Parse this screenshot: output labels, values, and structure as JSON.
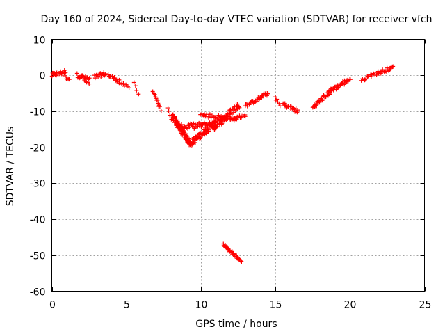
{
  "chart_data": {
    "type": "scatter",
    "title": "Day 160 of 2024, Sidereal Day-to-day VTEC variation (SDTVAR) for receiver vfch",
    "xlabel": "GPS time / hours",
    "ylabel": "SDTVAR / TECUs",
    "xlim": [
      0,
      25
    ],
    "ylim": [
      -60,
      10
    ],
    "xticks": [
      0,
      5,
      10,
      15,
      20,
      25
    ],
    "yticks": [
      -60,
      -50,
      -40,
      -30,
      -20,
      -10,
      0,
      10
    ],
    "grid": true,
    "marker": "+",
    "series_color": "#ff0000",
    "segments": [
      {
        "x0": 0.0,
        "x1": 0.9,
        "y0": 0.0,
        "y1": 1.0,
        "spread": 1.2,
        "n": 22
      },
      {
        "x0": 0.9,
        "x1": 1.2,
        "y0": -0.5,
        "y1": -1.0,
        "spread": 1.0,
        "n": 6
      },
      {
        "x0": 1.7,
        "x1": 2.5,
        "y0": 0.0,
        "y1": -1.0,
        "spread": 1.2,
        "n": 18
      },
      {
        "x0": 2.2,
        "x1": 2.5,
        "y0": -1.5,
        "y1": -2.5,
        "spread": 0.6,
        "n": 5
      },
      {
        "x0": 2.9,
        "x1": 3.6,
        "y0": -0.5,
        "y1": 0.5,
        "spread": 1.2,
        "n": 18
      },
      {
        "x0": 3.8,
        "x1": 4.5,
        "y0": 0.0,
        "y1": -1.5,
        "spread": 1.0,
        "n": 14
      },
      {
        "x0": 4.5,
        "x1": 5.2,
        "y0": -2.0,
        "y1": -3.5,
        "spread": 0.8,
        "n": 10
      },
      {
        "x0": 5.5,
        "x1": 5.8,
        "y0": -2.0,
        "y1": -5.0,
        "spread": 0.5,
        "n": 4
      },
      {
        "x0": 6.8,
        "x1": 7.3,
        "y0": -4.5,
        "y1": -9.5,
        "spread": 0.8,
        "n": 12
      },
      {
        "x0": 7.8,
        "x1": 8.0,
        "y0": -9.0,
        "y1": -12.5,
        "spread": 0.5,
        "n": 4
      },
      {
        "x0": 8.1,
        "x1": 9.3,
        "y0": -11.5,
        "y1": -19.0,
        "spread": 1.8,
        "n": 80
      },
      {
        "x0": 9.3,
        "x1": 11.0,
        "y0": -19.0,
        "y1": -13.0,
        "spread": 1.8,
        "n": 80
      },
      {
        "x0": 8.5,
        "x1": 11.0,
        "y0": -14.5,
        "y1": -13.5,
        "spread": 1.5,
        "n": 60
      },
      {
        "x0": 10.9,
        "x1": 12.6,
        "y0": -14.5,
        "y1": -8.0,
        "spread": 1.8,
        "n": 60
      },
      {
        "x0": 10.0,
        "x1": 12.0,
        "y0": -11.0,
        "y1": -12.0,
        "spread": 1.2,
        "n": 30
      },
      {
        "x0": 12.0,
        "x1": 13.0,
        "y0": -12.5,
        "y1": -11.0,
        "spread": 1.0,
        "n": 20
      },
      {
        "x0": 13.0,
        "x1": 14.5,
        "y0": -8.5,
        "y1": -5.0,
        "spread": 1.0,
        "n": 30
      },
      {
        "x0": 15.0,
        "x1": 15.3,
        "y0": -6.0,
        "y1": -8.5,
        "spread": 0.8,
        "n": 6
      },
      {
        "x0": 15.5,
        "x1": 16.5,
        "y0": -8.0,
        "y1": -10.0,
        "spread": 1.2,
        "n": 22
      },
      {
        "x0": 17.5,
        "x1": 18.7,
        "y0": -9.0,
        "y1": -4.5,
        "spread": 1.2,
        "n": 35
      },
      {
        "x0": 18.6,
        "x1": 20.0,
        "y0": -4.5,
        "y1": -1.0,
        "spread": 1.2,
        "n": 35
      },
      {
        "x0": 20.8,
        "x1": 21.6,
        "y0": -1.5,
        "y1": 0.5,
        "spread": 0.8,
        "n": 14
      },
      {
        "x0": 21.8,
        "x1": 22.9,
        "y0": 0.5,
        "y1": 2.2,
        "spread": 1.0,
        "n": 22
      },
      {
        "x0": 11.5,
        "x1": 12.7,
        "y0": -47.0,
        "y1": -51.5,
        "spread": 0.6,
        "n": 35
      }
    ]
  }
}
